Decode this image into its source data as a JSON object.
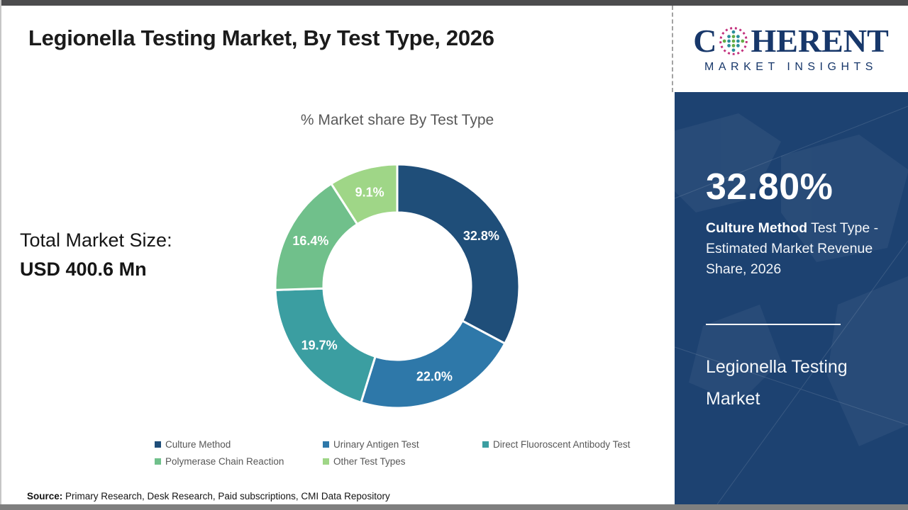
{
  "page": {
    "title": "Legionella Testing Market, By Test Type, 2026",
    "source_label": "Source:",
    "source_text": "Primary Research, Desk Research, Paid subscriptions, CMI Data Repository"
  },
  "logo": {
    "letter_c": "C",
    "letters_rest": "HERENT",
    "subtitle": "MARKET INSIGHTS"
  },
  "left_stats": {
    "label": "Total Market Size:",
    "value": "USD 400.6 Mn"
  },
  "chart_data": {
    "type": "pie",
    "subtype": "donut",
    "title": "% Market share By Test Type",
    "start_angle_deg": 0,
    "direction": "clockwise",
    "categories": [
      "Culture Method",
      "Urinary Antigen Test",
      "Direct Fluoroscent Antibody Test",
      "Polymerase Chain Reaction",
      "Other Test Types"
    ],
    "values": [
      32.8,
      22.0,
      19.7,
      16.4,
      9.1
    ],
    "labels": [
      "32.8%",
      "22.0%",
      "19.7%",
      "16.4%",
      "9.1%"
    ],
    "colors": [
      "#1F4E79",
      "#2E78A9",
      "#3B9EA1",
      "#70C08B",
      "#9FD687"
    ],
    "legend_position": "bottom",
    "total_market_size": "USD 400.6 Mn"
  },
  "sidebar": {
    "stat_value": "32.80%",
    "stat_desc_bold": "Culture Method",
    "stat_desc_rest": "Test Type - Estimated Market Revenue Share, 2026",
    "market_name": "Legionella Testing Market",
    "accent_bg": "#1D4271"
  }
}
